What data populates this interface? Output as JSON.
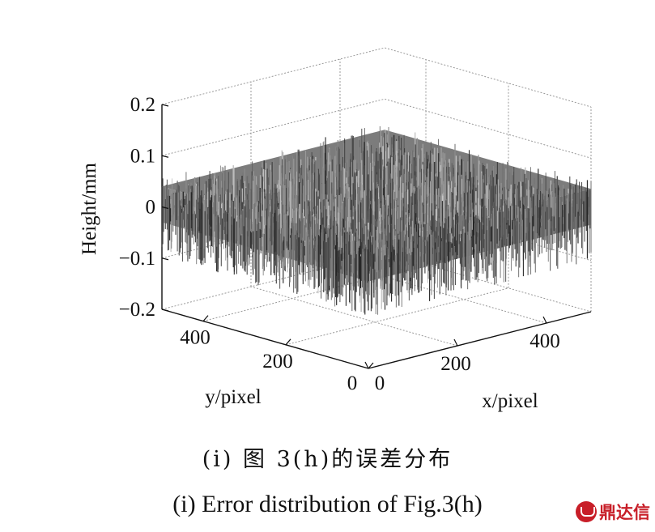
{
  "chart_data": {
    "type": "surface3d",
    "zlabel": "Height/mm",
    "xlabel": "x/pixel",
    "ylabel": "y/pixel",
    "zlim": [
      -0.2,
      0.2
    ],
    "xlim": [
      0,
      500
    ],
    "ylim": [
      0,
      500
    ],
    "z_ticks": [
      "0.2",
      "0.1",
      "0",
      "−0.1",
      "−0.2"
    ],
    "x_ticks": [
      "0",
      "200",
      "400"
    ],
    "y_ticks": [
      "0",
      "200",
      "400"
    ],
    "surface": {
      "mean": 0,
      "noise_range": [
        -0.1,
        0.06
      ]
    },
    "grid": true
  },
  "caption": {
    "cn": "(i) 图 3(h)的误差分布",
    "en": "(i) Error distribution of Fig.3(h)"
  },
  "watermark": {
    "text": "鼎达信",
    "color": "#c81e28"
  }
}
